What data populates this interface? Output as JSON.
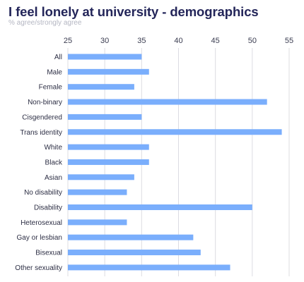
{
  "chart_data": {
    "type": "bar",
    "orientation": "horizontal",
    "title": "I feel lonely at university - demographics",
    "subtitle": "% agree/strongly agree",
    "categories": [
      "All",
      "Male",
      "Female",
      "Non-binary",
      "Cisgendered",
      "Trans identity",
      "White",
      "Black",
      "Asian",
      "No disability",
      "Disability",
      "Heterosexual",
      "Gay or lesbian",
      "Bisexual",
      "Other sexuality"
    ],
    "values": [
      35,
      36,
      34,
      52,
      35,
      54,
      36,
      36,
      34,
      33,
      50,
      33,
      42,
      43,
      47
    ],
    "xlim": [
      25,
      55
    ],
    "xticks": [
      25,
      30,
      35,
      40,
      45,
      50,
      55
    ],
    "axis_position": "top",
    "grid": true,
    "bar_color": "#7aaefc",
    "grid_color": "#dcdce2"
  }
}
